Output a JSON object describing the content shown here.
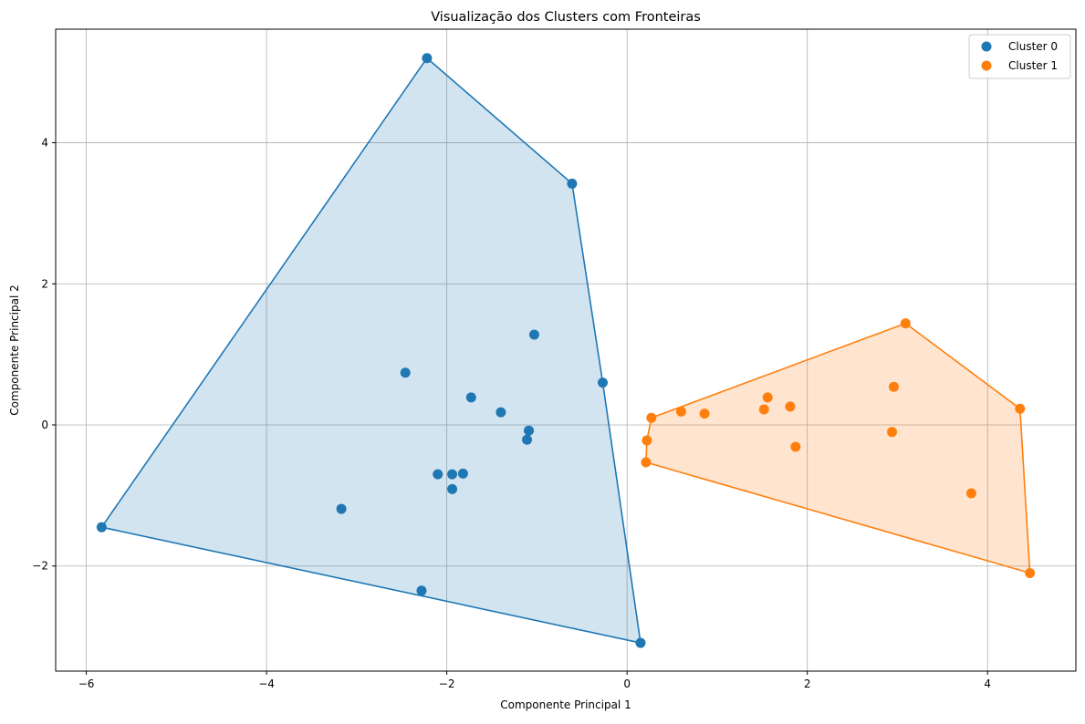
{
  "chart_data": {
    "type": "scatter",
    "title": "Visualização dos Clusters com Fronteiras",
    "xlabel": "Componente Principal 1",
    "ylabel": "Componente Principal 2",
    "xlim": [
      -6.34,
      4.98
    ],
    "ylim": [
      -3.49,
      5.61
    ],
    "xticks": [
      -6,
      -4,
      -2,
      0,
      2,
      4
    ],
    "yticks": [
      -2,
      0,
      2,
      4
    ],
    "grid": true,
    "legend_position": "top-right",
    "series": [
      {
        "name": "Cluster 0",
        "color": "#1f77b4",
        "points": [
          [
            -2.22,
            5.2
          ],
          [
            -0.61,
            3.42
          ],
          [
            -0.27,
            0.6
          ],
          [
            0.15,
            -3.09
          ],
          [
            -5.83,
            -1.45
          ],
          [
            -2.28,
            -2.35
          ],
          [
            -3.17,
            -1.19
          ],
          [
            -2.46,
            0.74
          ],
          [
            -1.03,
            1.28
          ],
          [
            -1.73,
            0.39
          ],
          [
            -1.4,
            0.18
          ],
          [
            -1.09,
            -0.08
          ],
          [
            -1.11,
            -0.21
          ],
          [
            -2.1,
            -0.7
          ],
          [
            -1.94,
            -0.7
          ],
          [
            -1.82,
            -0.69
          ],
          [
            -1.94,
            -0.91
          ]
        ],
        "hull": [
          [
            -2.22,
            5.2
          ],
          [
            -0.61,
            3.42
          ],
          [
            -0.27,
            0.6
          ],
          [
            0.15,
            -3.09
          ],
          [
            -5.83,
            -1.45
          ]
        ]
      },
      {
        "name": "Cluster 1",
        "color": "#ff7f0e",
        "points": [
          [
            3.09,
            1.44
          ],
          [
            4.36,
            0.23
          ],
          [
            4.47,
            -2.1
          ],
          [
            0.21,
            -0.53
          ],
          [
            0.22,
            -0.22
          ],
          [
            0.27,
            0.1
          ],
          [
            0.6,
            0.19
          ],
          [
            0.86,
            0.16
          ],
          [
            1.52,
            0.22
          ],
          [
            1.56,
            0.39
          ],
          [
            1.81,
            0.26
          ],
          [
            1.87,
            -0.31
          ],
          [
            2.96,
            0.54
          ],
          [
            2.94,
            -0.1
          ],
          [
            3.82,
            -0.97
          ]
        ],
        "hull": [
          [
            3.09,
            1.44
          ],
          [
            4.36,
            0.23
          ],
          [
            4.47,
            -2.1
          ],
          [
            0.21,
            -0.53
          ],
          [
            0.22,
            -0.22
          ],
          [
            0.27,
            0.1
          ]
        ]
      }
    ]
  }
}
